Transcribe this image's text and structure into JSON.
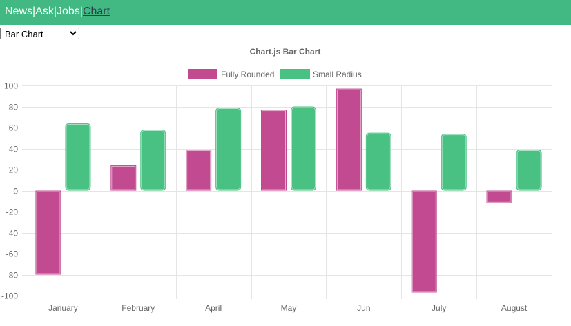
{
  "nav": {
    "items": [
      {
        "label": "News"
      },
      {
        "label": "Ask"
      },
      {
        "label": "Jobs"
      },
      {
        "label": "Chart"
      }
    ],
    "separator": "|"
  },
  "select": {
    "selected": "Bar Chart"
  },
  "colors": {
    "header": "#42b983",
    "active_link": "#2c3e50",
    "series_1": "#c14a90",
    "series_2": "#48c182"
  },
  "chart_data": {
    "type": "bar",
    "title": "Chart.js Bar Chart",
    "categories": [
      "January",
      "February",
      "April",
      "May",
      "Jun",
      "July",
      "August"
    ],
    "series": [
      {
        "name": "Fully Rounded",
        "color": "#c14a90",
        "values": [
          -80,
          24,
          39,
          77,
          97,
          -97,
          -12
        ]
      },
      {
        "name": "Small Radius",
        "color": "#48c182",
        "values": [
          64,
          58,
          79,
          80,
          55,
          54,
          39
        ]
      }
    ],
    "ylim": [
      -100,
      100
    ],
    "yticks": [
      100,
      80,
      60,
      40,
      20,
      0,
      -20,
      -40,
      -60,
      -80,
      -100
    ],
    "grid": true,
    "legend": "top"
  }
}
